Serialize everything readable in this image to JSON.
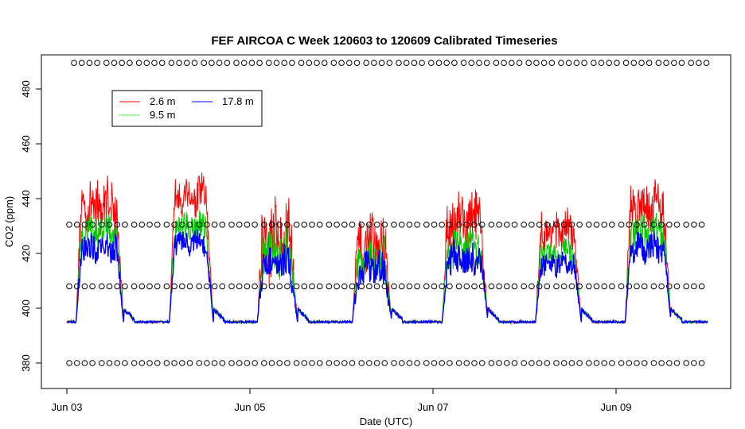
{
  "chart_data": {
    "type": "line",
    "title": "FEF AIRCOA C  Week 120603 to 120609  Calibrated Timeseries",
    "xlabel": "Date (UTC)",
    "ylabel": "CO2 (ppm)",
    "xlim": [
      0,
      7.3
    ],
    "ylim": [
      370,
      490
    ],
    "xticks": [
      {
        "value": 0,
        "label": "Jun 03"
      },
      {
        "value": 2,
        "label": "Jun 05"
      },
      {
        "value": 4,
        "label": "Jun 07"
      },
      {
        "value": 6,
        "label": "Jun 09"
      }
    ],
    "yticks": [
      380,
      400,
      420,
      440,
      460,
      480
    ],
    "legend": {
      "position": "top-left",
      "entries": [
        {
          "label": "2.6 m",
          "color": "#ff0000"
        },
        {
          "label": "17.8 m",
          "color": "#0000ff"
        },
        {
          "label": "9.5 m",
          "color": "#00cc00"
        }
      ]
    },
    "calibration_levels_ppm": [
      380,
      408,
      430.5,
      489.5
    ],
    "baseline_ppm": 395,
    "series": [
      {
        "name": "2.6 m",
        "color": "#ff0000",
        "days": [
          {
            "start": 0.1,
            "end": 0.62,
            "mean": 438,
            "noise": 9
          },
          {
            "start": 1.12,
            "end": 1.6,
            "mean": 441,
            "noise": 7
          },
          {
            "start": 2.08,
            "end": 2.52,
            "mean": 425,
            "noise": 14
          },
          {
            "start": 3.12,
            "end": 3.55,
            "mean": 423,
            "noise": 10
          },
          {
            "start": 4.1,
            "end": 4.6,
            "mean": 432,
            "noise": 10
          },
          {
            "start": 5.12,
            "end": 5.62,
            "mean": 428,
            "noise": 7
          },
          {
            "start": 6.1,
            "end": 6.6,
            "mean": 438,
            "noise": 9
          }
        ]
      },
      {
        "name": "9.5 m",
        "color": "#00cc00",
        "days": [
          {
            "start": 0.1,
            "end": 0.62,
            "mean": 428,
            "noise": 6
          },
          {
            "start": 1.12,
            "end": 1.6,
            "mean": 430,
            "noise": 5
          },
          {
            "start": 2.08,
            "end": 2.52,
            "mean": 420,
            "noise": 8
          },
          {
            "start": 3.12,
            "end": 3.55,
            "mean": 418,
            "noise": 7
          },
          {
            "start": 4.1,
            "end": 4.6,
            "mean": 422,
            "noise": 7
          },
          {
            "start": 5.12,
            "end": 5.62,
            "mean": 420,
            "noise": 5
          },
          {
            "start": 6.1,
            "end": 6.6,
            "mean": 428,
            "noise": 6
          }
        ]
      },
      {
        "name": "17.8 m",
        "color": "#0000ff",
        "days": [
          {
            "start": 0.1,
            "end": 0.62,
            "mean": 422,
            "noise": 5
          },
          {
            "start": 1.12,
            "end": 1.6,
            "mean": 424,
            "noise": 4
          },
          {
            "start": 2.08,
            "end": 2.52,
            "mean": 416,
            "noise": 6
          },
          {
            "start": 3.12,
            "end": 3.55,
            "mean": 414,
            "noise": 6
          },
          {
            "start": 4.1,
            "end": 4.6,
            "mean": 418,
            "noise": 6
          },
          {
            "start": 5.12,
            "end": 5.62,
            "mean": 416,
            "noise": 4
          },
          {
            "start": 6.1,
            "end": 6.6,
            "mean": 422,
            "noise": 5
          }
        ]
      }
    ]
  }
}
